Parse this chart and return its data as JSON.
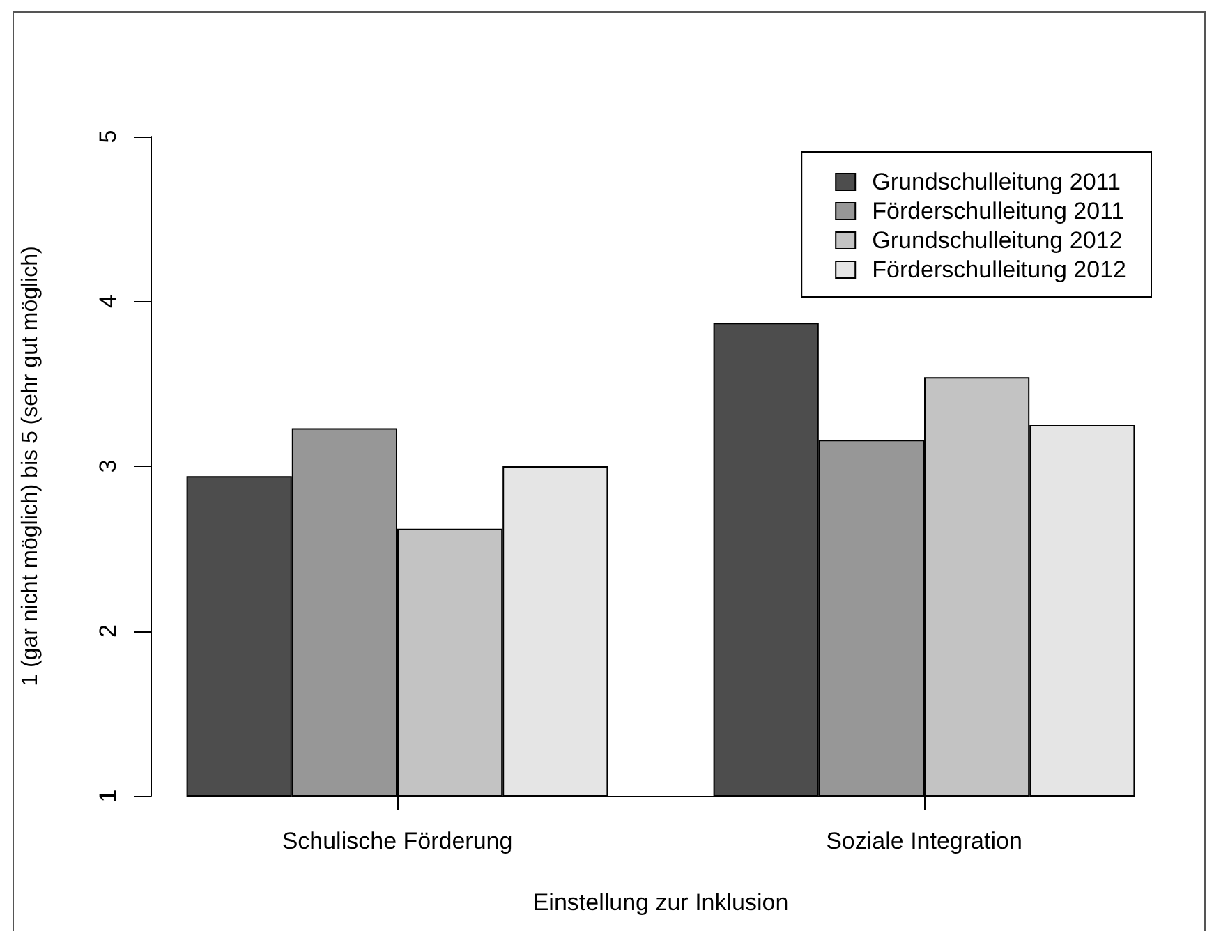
{
  "chart_data": {
    "type": "bar",
    "xlabel": "Einstellung zur Inklusion",
    "ylabel": "1 (gar nicht möglich) bis 5 (sehr gut möglich)",
    "categories": [
      "Schulische Förderung",
      "Soziale Integration"
    ],
    "series": [
      {
        "name": "Grundschulleitung 2011",
        "color": "#4d4d4d",
        "values": [
          2.94,
          3.87
        ]
      },
      {
        "name": "Förderschulleitung 2011",
        "color": "#979797",
        "values": [
          3.23,
          3.16
        ]
      },
      {
        "name": "Grundschulleitung 2012",
        "color": "#c3c3c3",
        "values": [
          2.62,
          3.54
        ]
      },
      {
        "name": "Förderschulleitung 2012",
        "color": "#e5e5e5",
        "values": [
          3.0,
          3.25
        ]
      }
    ],
    "ylim": [
      1,
      5
    ],
    "yticks": [
      1,
      2,
      3,
      4,
      5
    ],
    "legend": "top right"
  }
}
